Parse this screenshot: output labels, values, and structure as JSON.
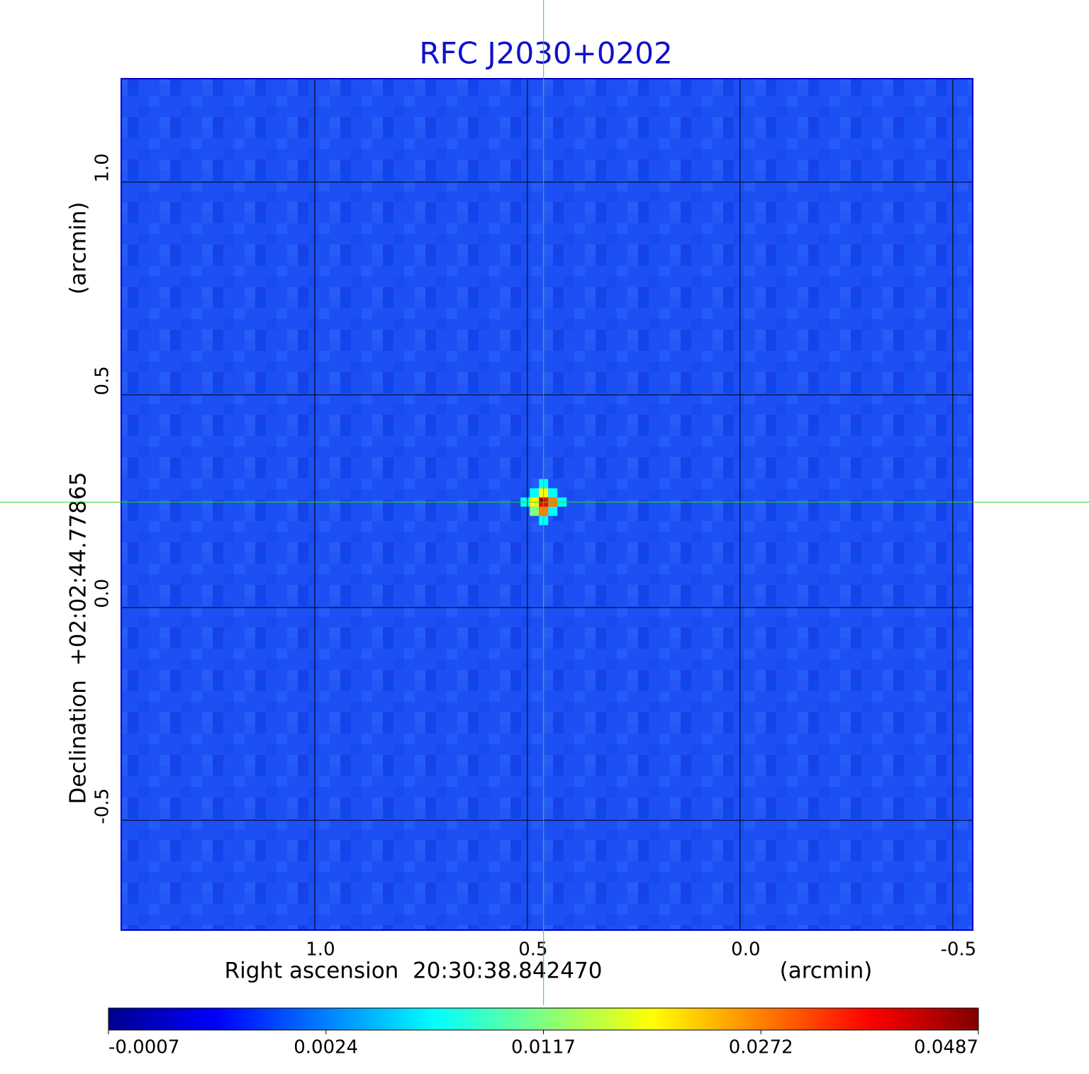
{
  "chart_data": {
    "type": "image",
    "title": "RFC J2030+0202",
    "x_label": "Right ascension  20:30:38.842470",
    "x_unit": "(arcmin)",
    "y_label": "Declination  +02:02:44.77865",
    "y_unit": "(arcmin)",
    "xlim": [
      1.455,
      -0.547
    ],
    "ylim": [
      -0.758,
      1.243
    ],
    "xticks": [
      {
        "value": 1,
        "label": "1.0"
      },
      0.5,
      {
        "value": 0,
        "label": "0.0"
      },
      -0.5
    ],
    "yticks": [
      {
        "value": 1,
        "label": "1.0"
      },
      0.5,
      {
        "value": 0,
        "label": "0.0"
      },
      -0.5
    ],
    "grid": true,
    "background_color": "#1c50f4",
    "crosshair_color": "#22dd22",
    "marker": {
      "x": 0.462,
      "y": 0.248
    },
    "colorbar": {
      "ticks": [
        -0.0007,
        0.0024,
        0.0117,
        0.0272,
        0.0487
      ],
      "colors": [
        "#00008f",
        "#0000ff",
        "#0080ff",
        "#00ffff",
        "#80ff80",
        "#ffff00",
        "#ff8000",
        "#ff0000",
        "#800000"
      ]
    }
  }
}
